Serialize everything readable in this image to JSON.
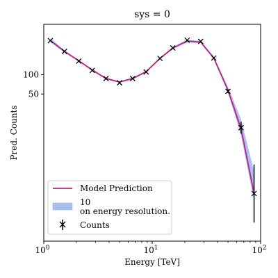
{
  "chart_data": {
    "type": "line",
    "title": "sys = 0",
    "xlabel": "Energy [TeV]",
    "ylabel": "Pred. Counts",
    "xscale": "log",
    "xlim": [
      1,
      100
    ],
    "ylim": [
      -330,
      230
    ],
    "grid": false,
    "legend_position": "lower-left",
    "x_ticks": [
      {
        "value": 1,
        "base": "10",
        "exp": "0"
      },
      {
        "value": 10,
        "base": "10",
        "exp": "1"
      },
      {
        "value": 100,
        "base": "10",
        "exp": "2"
      }
    ],
    "y_ticks": [
      {
        "value": 50,
        "label": "50"
      },
      {
        "value": 100,
        "label": "100"
      }
    ],
    "energy": [
      1.15,
      1.55,
      2.1,
      2.8,
      3.75,
      5.0,
      6.6,
      8.8,
      11.8,
      15.5,
      21.0,
      28.0,
      37.0,
      50.0,
      66.0,
      87.0
    ],
    "series": [
      {
        "name": "Model Prediction",
        "kind": "line",
        "color": "#c51b8a",
        "values": [
          188,
          160,
          136,
          112,
          90,
          81,
          90,
          108,
          142,
          169,
          187,
          184,
          143,
          60,
          -40,
          -207
        ]
      },
      {
        "name": "10\non energy resolution.",
        "kind": "band",
        "color": "#a4bff0",
        "lower": [
          184,
          158,
          134,
          110,
          88,
          79,
          88,
          106,
          140,
          166,
          183,
          181,
          140,
          54,
          -56,
          -227
        ],
        "upper": [
          194,
          163,
          138,
          114,
          92,
          83,
          92,
          110,
          144,
          171,
          190,
          187,
          147,
          68,
          -15,
          -150
        ]
      },
      {
        "name": "Counts",
        "kind": "errorbar",
        "color": "#000000",
        "values": [
          188,
          160,
          135,
          111,
          90,
          79,
          90,
          107,
          142,
          169,
          189,
          186,
          143,
          57,
          -37,
          -207
        ],
        "errors": [
          2,
          2,
          2,
          2,
          2,
          2,
          2,
          2,
          2,
          2,
          2,
          2,
          2,
          5,
          15,
          75
        ]
      }
    ]
  }
}
